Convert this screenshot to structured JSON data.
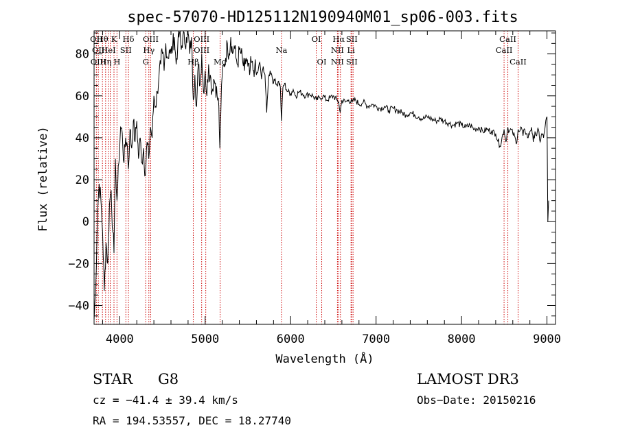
{
  "chart_data": {
    "type": "line",
    "title": "spec-57070-HD125112N190940M01_sp06-003.fits",
    "xlabel": "Wavelength (Å)",
    "ylabel": "Flux (relative)",
    "xlim": [
      3700,
      9100
    ],
    "ylim": [
      -49,
      91
    ],
    "xticks": [
      4000,
      5000,
      6000,
      7000,
      8000,
      9000
    ],
    "xtick_labels": [
      "4000",
      "5000",
      "6000",
      "7000",
      "8000",
      "9000"
    ],
    "yticks": [
      -40,
      -20,
      0,
      20,
      40,
      60,
      80
    ],
    "ytick_labels": [
      "−40",
      "−20",
      "0",
      "20",
      "40",
      "60",
      "80"
    ],
    "series": [
      {
        "x": [
          3700,
          3720,
          3740,
          3760,
          3780,
          3800,
          3820,
          3840,
          3860,
          3880,
          3900,
          3920,
          3933,
          3950,
          3968,
          3990,
          4010,
          4030,
          4050,
          4070,
          4090,
          4102,
          4120,
          4140,
          4160,
          4180,
          4200,
          4220,
          4240,
          4260,
          4280,
          4300,
          4320,
          4340,
          4360,
          4380,
          4400,
          4420,
          4440,
          4460,
          4480,
          4500,
          4520,
          4540,
          4560,
          4580,
          4600,
          4620,
          4640,
          4660,
          4680,
          4700,
          4720,
          4740,
          4760,
          4780,
          4800,
          4820,
          4840,
          4861,
          4880,
          4900,
          4920,
          4940,
          4960,
          4980,
          5000,
          5020,
          5040,
          5060,
          5080,
          5100,
          5120,
          5140,
          5160,
          5172,
          5183,
          5200,
          5220,
          5240,
          5260,
          5280,
          5300,
          5320,
          5340,
          5360,
          5380,
          5400,
          5420,
          5440,
          5460,
          5480,
          5500,
          5520,
          5540,
          5560,
          5580,
          5600,
          5620,
          5640,
          5660,
          5680,
          5700,
          5720,
          5740,
          5760,
          5780,
          5800,
          5820,
          5840,
          5860,
          5880,
          5893,
          5910,
          5930,
          5950,
          5970,
          6000,
          6030,
          6060,
          6100,
          6140,
          6180,
          6220,
          6260,
          6300,
          6340,
          6380,
          6420,
          6460,
          6500,
          6540,
          6563,
          6580,
          6600,
          6640,
          6680,
          6720,
          6760,
          6800,
          6850,
          6900,
          6950,
          7000,
          7050,
          7100,
          7150,
          7200,
          7250,
          7300,
          7350,
          7400,
          7450,
          7500,
          7550,
          7600,
          7650,
          7700,
          7750,
          7800,
          7850,
          7900,
          7950,
          8000,
          8050,
          8100,
          8150,
          8200,
          8250,
          8300,
          8350,
          8400,
          8450,
          8498,
          8520,
          8542,
          8560,
          8580,
          8600,
          8620,
          8640,
          8662,
          8680,
          8700,
          8720,
          8740,
          8760,
          8780,
          8800,
          8820,
          8840,
          8860,
          8880,
          8900,
          8920,
          8940,
          8960,
          8980,
          9000,
          9010,
          9020
        ],
        "y": [
          -47,
          -30,
          5,
          18,
          10,
          -5,
          -33,
          -10,
          -20,
          8,
          15,
          -5,
          -15,
          30,
          10,
          28,
          45,
          42,
          28,
          40,
          36,
          25,
          44,
          35,
          48,
          38,
          48,
          30,
          40,
          28,
          35,
          22,
          38,
          30,
          45,
          40,
          60,
          55,
          62,
          70,
          75,
          80,
          72,
          85,
          78,
          82,
          80,
          84,
          88,
          75,
          85,
          90,
          82,
          89,
          85,
          88,
          90,
          80,
          88,
          58,
          70,
          55,
          75,
          65,
          80,
          62,
          72,
          60,
          75,
          70,
          62,
          68,
          66,
          60,
          55,
          35,
          52,
          70,
          75,
          78,
          85,
          80,
          88,
          80,
          84,
          78,
          75,
          82,
          80,
          76,
          72,
          78,
          74,
          70,
          76,
          72,
          74,
          70,
          72,
          76,
          68,
          74,
          70,
          52,
          68,
          72,
          70,
          66,
          68,
          65,
          67,
          64,
          48,
          64,
          66,
          63,
          62,
          61,
          63,
          60,
          62,
          61,
          60,
          61,
          60,
          58,
          59,
          60,
          58,
          59,
          60,
          58,
          57,
          52,
          58,
          57,
          58,
          57,
          58,
          56,
          57,
          55,
          56,
          55,
          54,
          55,
          53,
          54,
          53,
          52,
          51,
          52,
          51,
          50,
          49,
          50,
          49,
          48,
          49,
          48,
          47,
          46,
          47,
          46,
          45,
          46,
          44,
          45,
          43,
          44,
          43,
          42,
          36,
          44,
          38,
          45,
          43,
          44,
          42,
          41,
          37,
          44,
          43,
          45,
          41,
          44,
          42,
          40,
          43,
          45,
          38,
          43,
          41,
          44,
          38,
          42,
          40,
          46,
          50,
          0,
          10
        ]
      }
    ],
    "lines": [
      {
        "x": 3727,
        "top": "OII",
        "mid": "",
        "bot": ""
      },
      {
        "x": 3750,
        "top": "",
        "mid": "OII",
        "bot": "OIII"
      },
      {
        "x": 3798,
        "top": "Hθ",
        "mid": "",
        "bot": ""
      },
      {
        "x": 3835,
        "top": "",
        "mid": "",
        "bot": "Hη"
      },
      {
        "x": 3869,
        "top": "",
        "mid": "HeI",
        "bot": ""
      },
      {
        "x": 3889,
        "top": "",
        "mid": "",
        "bot": ""
      },
      {
        "x": 3933,
        "top": "K",
        "mid": "",
        "bot": ""
      },
      {
        "x": 3968,
        "top": "",
        "mid": "",
        "bot": "H"
      },
      {
        "x": 4072,
        "top": "",
        "mid": "SII",
        "bot": ""
      },
      {
        "x": 4102,
        "top": "Hδ",
        "mid": "",
        "bot": ""
      },
      {
        "x": 4304,
        "top": "",
        "mid": "",
        "bot": "G"
      },
      {
        "x": 4341,
        "top": "",
        "mid": "Hγ",
        "bot": ""
      },
      {
        "x": 4363,
        "top": "OIII",
        "mid": "",
        "bot": ""
      },
      {
        "x": 4861,
        "top": "",
        "mid": "",
        "bot": "Hβ"
      },
      {
        "x": 4959,
        "top": "OIII",
        "mid": "OIII",
        "bot": ""
      },
      {
        "x": 5007,
        "top": "",
        "mid": "",
        "bot": ""
      },
      {
        "x": 5175,
        "top": "",
        "mid": "",
        "bot": "Mg"
      },
      {
        "x": 5893,
        "top": "",
        "mid": "Na",
        "bot": ""
      },
      {
        "x": 6300,
        "top": "OI",
        "mid": "",
        "bot": ""
      },
      {
        "x": 6364,
        "top": "",
        "mid": "",
        "bot": "OI"
      },
      {
        "x": 6548,
        "top": "",
        "mid": "NII",
        "bot": "NII"
      },
      {
        "x": 6563,
        "top": "Hα",
        "mid": "",
        "bot": ""
      },
      {
        "x": 6583,
        "top": "",
        "mid": "",
        "bot": ""
      },
      {
        "x": 6707,
        "top": "",
        "mid": "Li",
        "bot": ""
      },
      {
        "x": 6716,
        "top": "SII",
        "mid": "",
        "bot": "SII"
      },
      {
        "x": 6731,
        "top": "",
        "mid": "",
        "bot": ""
      },
      {
        "x": 8498,
        "top": "",
        "mid": "CaII",
        "bot": ""
      },
      {
        "x": 8542,
        "top": "CaII",
        "mid": "",
        "bot": ""
      },
      {
        "x": 8662,
        "top": "",
        "mid": "",
        "bot": "CaII"
      }
    ]
  },
  "info": {
    "class": "STAR",
    "subclass": "G8",
    "survey": "LAMOST DR3",
    "cz": "cz = −41.4 ± 39.4 km/s",
    "obs_date": "Obs−Date: 20150216",
    "radec": "RA = 194.53557, DEC =  18.27740"
  },
  "colors": {
    "spectrum": "#000000",
    "line_markers": "#cc0000",
    "axes": "#000000"
  }
}
